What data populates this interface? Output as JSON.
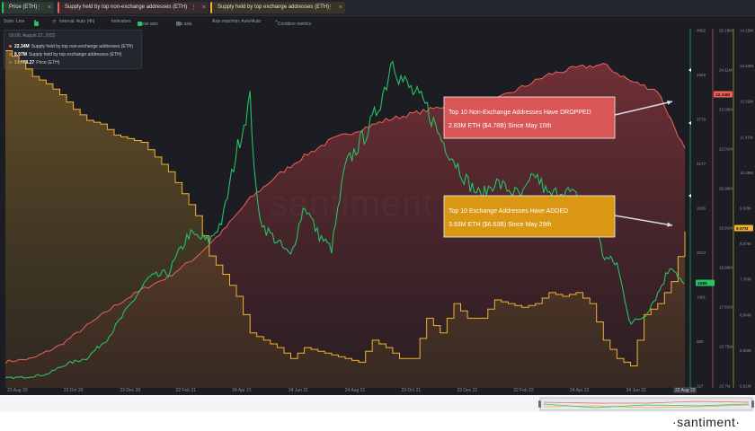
{
  "tabs": [
    {
      "label": "Price (ETH)",
      "color": "#26c264"
    },
    {
      "label": "Supply held by top non-exchange addresses (ETH)",
      "color": "#f0605a"
    },
    {
      "label": "Supply held by top exchange addresses (ETH)",
      "color": "#f0b232"
    }
  ],
  "toolbar": {
    "style": "Style: Line",
    "interval": "Interval: Auto (4h)",
    "indicators": "Indicators",
    "show_axis": "Show axis",
    "pin_axis": "Pin axis",
    "axis_max_min": "Axis max/min: Auto/Auto",
    "combine": "Combine metrics"
  },
  "legend": {
    "header": "00:00, August 22, 2022",
    "rows": [
      {
        "value": "22.34M",
        "label": "Supply held by top non-exchange addresses (ETH)",
        "color": "#f0605a"
      },
      {
        "value": "8.97M",
        "label": "Supply held by top exchange addresses (ETH)",
        "color": "#f0b232"
      },
      {
        "value": "$1,589.27",
        "label": "Price (ETH)",
        "color": "#26c264"
      }
    ]
  },
  "annotations": [
    {
      "line1": "Top 10 Non-Exchange Addresses Have DROPPED",
      "line2": "2.83M ETH ($4.78B) Since May 10th",
      "color": "#d95556"
    },
    {
      "line1": "Top 10 Exchange Addresses Have ADDED",
      "line2": "3.93M ETH ($6.63B) Since May 29th",
      "color": "#d99714"
    }
  ],
  "watermark": "santiment",
  "brand": "·santiment·",
  "chart_data": {
    "type": "line",
    "x_labels": [
      "23 Aug 20",
      "23 Oct 20",
      "23 Dec 20",
      "22 Feb 21",
      "24 Apr 21",
      "24 Jun 21",
      "24 Aug 21",
      "23 Oct 21",
      "23 Dec 21",
      "22 Feb 22",
      "24 Apr 22",
      "24 Jun 22"
    ],
    "x_end_label": "22 Aug 22",
    "axes": {
      "price": {
        "ticks": [
          "4882",
          "4329",
          "3776",
          "3177",
          "2605",
          "2023",
          "1451",
          "880",
          "327"
        ],
        "current": "1589",
        "color": "#26c264"
      },
      "non_exchange": {
        "ticks": [
          "25.18M",
          "24.11M",
          "23.05M",
          "22.01M",
          "20.96M",
          "19.91M",
          "18.86M",
          "17.81M",
          "16.75M",
          "15.7M"
        ],
        "current": "22.34M",
        "color": "#f0605a"
      },
      "exchange": {
        "ticks": [
          "14.15M",
          "13.23M",
          "12.32M",
          "11.41M",
          "10.49M",
          "9.58M",
          "8.67M",
          "7.76M",
          "6.84M",
          "5.93M",
          "5.01M"
        ],
        "current": "8.97M",
        "color": "#f0b232"
      }
    },
    "series": [
      {
        "name": "Supply held by top non-exchange addresses (ETH)",
        "unit": "M",
        "color": "#f0605a",
        "x": [
          0,
          4,
          8,
          12,
          16,
          20,
          24,
          28,
          32,
          36,
          40,
          44,
          48,
          52,
          56,
          60,
          64,
          68,
          72,
          76,
          80,
          84,
          88,
          92,
          96,
          100
        ],
        "values": [
          15.8,
          15.9,
          16.3,
          16.9,
          17.5,
          18.0,
          18.4,
          19.0,
          19.8,
          20.8,
          21.5,
          22.1,
          22.6,
          22.9,
          23.2,
          23.4,
          23.6,
          23.8,
          23.8,
          24.2,
          24.6,
          24.8,
          24.9,
          24.4,
          24.1,
          22.3
        ]
      },
      {
        "name": "Supply held by top exchange addresses (ETH)",
        "unit": "M",
        "color": "#f0b232",
        "x": [
          0,
          2,
          4,
          6,
          8,
          10,
          12,
          14,
          16,
          18,
          20,
          22,
          24,
          26,
          28,
          30,
          32,
          34,
          36,
          38,
          40,
          42,
          44,
          46,
          48,
          50,
          52,
          54,
          56,
          58,
          60,
          62,
          64,
          66,
          68,
          70,
          72,
          74,
          76,
          78,
          80,
          82,
          84,
          86,
          88,
          90,
          92,
          94,
          96,
          98,
          100
        ],
        "values": [
          13.9,
          13.6,
          13.2,
          13.0,
          12.7,
          12.3,
          12.0,
          11.9,
          11.6,
          11.5,
          11.4,
          11.0,
          10.6,
          10.0,
          9.4,
          8.3,
          7.8,
          7.2,
          6.2,
          6.0,
          5.8,
          5.5,
          5.8,
          5.7,
          5.6,
          5.5,
          5.4,
          6.0,
          5.8,
          5.5,
          5.5,
          6.6,
          6.2,
          7.0,
          6.6,
          6.6,
          7.1,
          7.0,
          6.9,
          7.0,
          7.3,
          7.2,
          7.3,
          7.0,
          6.0,
          5.5,
          5.3,
          6.7,
          7.0,
          7.6,
          8.97
        ]
      },
      {
        "name": "Price (ETH)",
        "unit": "USD",
        "color": "#26c264",
        "x": [
          0,
          3,
          6,
          9,
          12,
          15,
          18,
          21,
          24,
          27,
          30,
          32,
          34,
          36,
          37,
          38,
          40,
          42,
          44,
          46,
          48,
          50,
          52,
          54,
          56,
          57,
          58,
          60,
          62,
          64,
          66,
          68,
          70,
          72,
          74,
          76,
          78,
          80,
          82,
          84,
          86,
          88,
          90,
          92,
          94,
          96,
          98,
          100
        ],
        "values": [
          370,
          385,
          420,
          560,
          640,
          900,
          1300,
          1700,
          1780,
          2300,
          2200,
          2500,
          3400,
          4100,
          2700,
          2400,
          2200,
          2000,
          2700,
          2300,
          2100,
          3200,
          3500,
          3800,
          4300,
          4700,
          4400,
          4200,
          4000,
          3600,
          3300,
          3000,
          2800,
          3000,
          2900,
          2800,
          3100,
          2800,
          2900,
          2800,
          2700,
          2000,
          1900,
          1100,
          1200,
          1500,
          1900,
          1589
        ]
      }
    ]
  }
}
